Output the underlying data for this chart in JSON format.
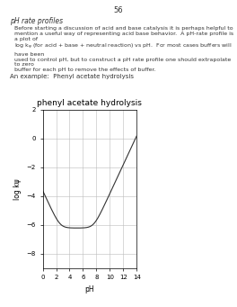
{
  "title": "phenyl acetate hydrolysis",
  "xlabel": "pH",
  "ylabel": "log kψ",
  "xlim": [
    0,
    14
  ],
  "ylim": [
    -9,
    2
  ],
  "yticks": [
    2,
    0,
    -2,
    -4,
    -6,
    -8
  ],
  "xticks": [
    0,
    2,
    4,
    6,
    8,
    10,
    12,
    14
  ],
  "k0": 6.03e-07,
  "kH": 0.000234,
  "kOH": 1.45,
  "background_color": "#ffffff",
  "line_color": "#333333",
  "grid_color": "#bbbbbb",
  "title_fontsize": 6.5,
  "label_fontsize": 5.5,
  "tick_fontsize": 5.0
}
